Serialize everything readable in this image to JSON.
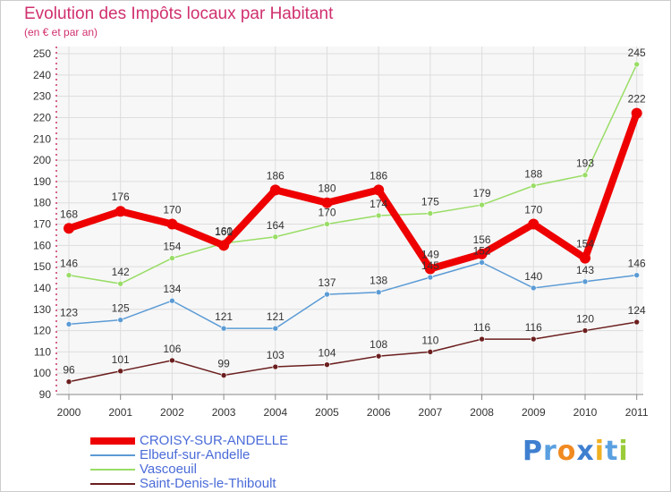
{
  "title": "Evolution des Impôts locaux par Habitant",
  "subtitle": "(en € et par an)",
  "colors": {
    "title": "#d0306e",
    "legend_text": "#4a6bd8"
  },
  "logo": {
    "text": "Proxiti",
    "letters": [
      {
        "ch": "P",
        "color": "#3f7fd0"
      },
      {
        "ch": "r",
        "color": "#5aa0e0"
      },
      {
        "ch": "o",
        "color": "#f08a20"
      },
      {
        "ch": "x",
        "color": "#3f7fd0"
      },
      {
        "ch": "i",
        "color": "#f0b020"
      },
      {
        "ch": "t",
        "color": "#5aa0e0"
      },
      {
        "ch": "i",
        "color": "#9acc3a"
      }
    ]
  },
  "chart_data": {
    "type": "line",
    "x": [
      "2000",
      "2001",
      "2002",
      "2003",
      "2004",
      "2005",
      "2006",
      "2007",
      "2008",
      "2009",
      "2010",
      "2011"
    ],
    "ylim": [
      90,
      250
    ],
    "yticks": [
      90,
      100,
      110,
      120,
      130,
      140,
      150,
      160,
      170,
      180,
      190,
      200,
      210,
      220,
      230,
      240,
      250
    ],
    "grid": true,
    "legend_position": "bottom-left",
    "series": [
      {
        "name": "CROISY-SUR-ANDELLE",
        "color": "#ee0000",
        "values": [
          168,
          176,
          170,
          160,
          186,
          180,
          186,
          149,
          156,
          170,
          154,
          222
        ]
      },
      {
        "name": "Elbeuf-sur-Andelle",
        "color": "#5b9bd5",
        "values": [
          123,
          125,
          134,
          121,
          121,
          137,
          138,
          145,
          152,
          140,
          143,
          146
        ]
      },
      {
        "name": "Vascoeuil",
        "color": "#99dd66",
        "values": [
          146,
          142,
          154,
          161,
          164,
          170,
          174,
          175,
          179,
          188,
          193,
          245
        ]
      },
      {
        "name": "Saint-Denis-le-Thiboult",
        "color": "#6b1e1e",
        "values": [
          96,
          101,
          106,
          99,
          103,
          104,
          108,
          110,
          116,
          116,
          120,
          124
        ]
      }
    ]
  }
}
